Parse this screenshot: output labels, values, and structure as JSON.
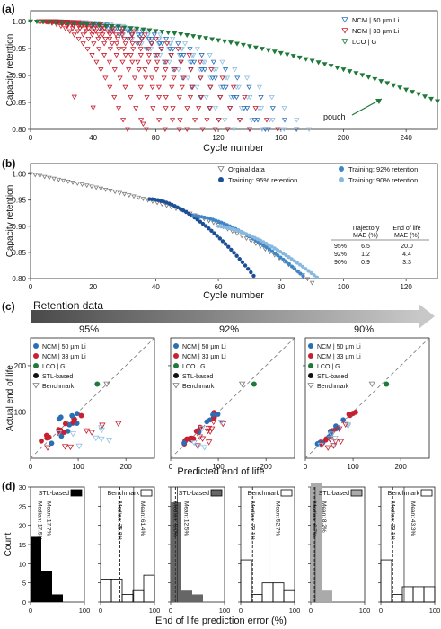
{
  "panels": {
    "a": "(a)",
    "b": "(b)",
    "c": "(c)",
    "d": "(d)"
  },
  "colors": {
    "ncm50": "#2a6fb5",
    "ncm50_light": "#8fc0e3",
    "ncm33": "#c8202f",
    "lco": "#1f7a3a",
    "bench": "#7a7a7a",
    "dark_blue": "#1c4f96",
    "mid_blue": "#3f86c8",
    "light_blue": "#86b8e0"
  },
  "retention_label": "Retention data",
  "chart_data": [
    {
      "id": "a",
      "type": "scatter",
      "xlabel": "Cycle number",
      "ylabel": "Capacity retention",
      "xlim": [
        0,
        260
      ],
      "ylim": [
        0.8,
        1.02
      ],
      "xticks": [
        "0",
        "40",
        "80",
        "120",
        "160",
        "200",
        "240"
      ],
      "yticks": [
        "0.80",
        "0.85",
        "0.90",
        "0.95",
        "1.00"
      ],
      "legend": [
        "NCM | 50 µm Li",
        "NCM | 33 µm Li",
        "LCO | G"
      ],
      "annotation": "pouch",
      "legend_position": "top-right",
      "series": [
        {
          "name": "NCM | 50 µm Li",
          "cells": [
            [
              70,
              126
            ],
            [
              80,
              130
            ],
            [
              95,
              140
            ],
            [
              105,
              148
            ],
            [
              110,
              152
            ],
            [
              120,
              160
            ],
            [
              124,
              170
            ],
            [
              130,
              178
            ],
            [
              100,
              150
            ],
            [
              115,
              162
            ]
          ]
        },
        {
          "name": "NCM | 33 µm Li",
          "cells": [
            [
              35,
              62
            ],
            [
              45,
              74
            ],
            [
              55,
              86
            ],
            [
              62,
              95
            ],
            [
              68,
              100
            ],
            [
              75,
              110
            ],
            [
              82,
              118
            ],
            [
              90,
              126
            ],
            [
              100,
              140
            ],
            [
              110,
              158
            ]
          ]
        },
        {
          "name": "LCO | G",
          "cells": [
            [
              0,
              1.0
            ],
            [
              60,
              0.99
            ],
            [
              120,
              0.968
            ],
            [
              180,
              0.935
            ],
            [
              220,
              0.9
            ],
            [
              260,
              0.855
            ]
          ]
        }
      ]
    },
    {
      "id": "b",
      "type": "scatter",
      "xlabel": "Cycle number",
      "ylabel": "Capacity retention",
      "xlim": [
        0,
        130
      ],
      "ylim": [
        0.8,
        1.02
      ],
      "xticks": [
        "0",
        "20",
        "40",
        "60",
        "80",
        "100",
        "120"
      ],
      "yticks": [
        "0.80",
        "0.85",
        "0.90",
        "0.95",
        "1.00"
      ],
      "legend": [
        "Orginal data",
        "Training: 95% retention",
        "Training: 92% retention",
        "Training: 90% retention"
      ],
      "legend_position": "top-right",
      "table": {
        "headers": [
          "Trajectory\nMAE (%)",
          "End of life\nMAE (%)"
        ],
        "rows": [
          {
            "label": "95%",
            "trajectory": "6.5",
            "eol": "20.0"
          },
          {
            "label": "92%",
            "trajectory": "1.2",
            "eol": "4.4"
          },
          {
            "label": "90%",
            "trajectory": "0.9",
            "eol": "3.3"
          }
        ]
      }
    },
    {
      "id": "c",
      "type": "scatter",
      "subplots": [
        "95%",
        "92%",
        "90%"
      ],
      "xlabel": "Predicted end of life",
      "ylabel": "Actual end of life",
      "xlim": [
        0,
        260
      ],
      "ylim": [
        0,
        260
      ],
      "xticks": [
        "0",
        "100",
        "200"
      ],
      "yticks": [
        "100",
        "200"
      ],
      "legend": [
        "NCM | 50 µm Li",
        "NCM | 33 µm Li",
        "LCO | G",
        "STL-based",
        "Benchmark"
      ],
      "legend_position": "top-left"
    },
    {
      "id": "d",
      "type": "bar",
      "xlabel": "End of life prediction error (%)",
      "ylabel": "Count",
      "xlim": [
        0,
        100
      ],
      "ylim": [
        0,
        30
      ],
      "xticks": [
        "0",
        "100"
      ],
      "yticks": [
        "0",
        "5",
        "10",
        "15",
        "20",
        "25",
        "30"
      ],
      "histograms": [
        {
          "name": "STL-based",
          "median": "Median: 17.5%",
          "mean": "Mean: 17.7%",
          "counts": [
            17,
            8,
            2,
            0,
            0
          ],
          "style": "black"
        },
        {
          "name": "Benchmark",
          "median": "Median: 35.8%",
          "mean": "Mean: 61.4%",
          "counts": [
            6,
            6,
            2,
            3,
            7
          ],
          "style": "outline"
        },
        {
          "name": "STL-based",
          "median": "Median: 9.0%",
          "mean": "Mean: 12.5%",
          "counts": [
            26,
            3,
            2,
            0,
            0
          ],
          "style": "dark-gray"
        },
        {
          "name": "Benchmark",
          "median": "Median: 22.1%",
          "mean": "Mean: 52.7%",
          "counts": [
            11,
            2,
            5,
            5,
            3
          ],
          "style": "outline"
        },
        {
          "name": "STL-based",
          "median": "Median: 6.7%",
          "mean": "Mean: 8.2%",
          "counts": [
            31,
            3,
            0,
            0,
            0
          ],
          "style": "light-gray"
        },
        {
          "name": "Benchmark",
          "median": "Median: 22.1%",
          "mean": "Mean: 43.3%",
          "counts": [
            11,
            2,
            4,
            4,
            4
          ],
          "style": "outline"
        }
      ]
    }
  ]
}
